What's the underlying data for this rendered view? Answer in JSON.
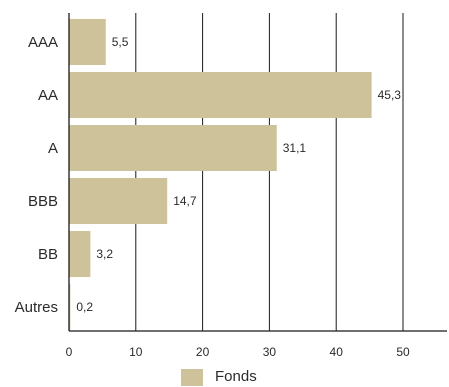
{
  "chart_data": {
    "type": "bar",
    "orientation": "horizontal",
    "categories": [
      "AAA",
      "AA",
      "A",
      "BBB",
      "BB",
      "Autres"
    ],
    "series": [
      {
        "name": "Fonds",
        "values": [
          5.5,
          45.3,
          31.1,
          14.7,
          3.2,
          0.2
        ],
        "color": "#cdc29a"
      }
    ],
    "value_labels": [
      "5,5",
      "45,3",
      "31,1",
      "14,7",
      "3,2",
      "0,2"
    ],
    "xlim": [
      0,
      57
    ],
    "x_ticks": [
      0,
      10,
      20,
      30,
      40,
      50
    ],
    "x_tick_labels": [
      "0",
      "10",
      "20",
      "30",
      "40",
      "50"
    ],
    "grid": "vertical",
    "legend_position": "bottom"
  },
  "legend": {
    "label": "Fonds"
  }
}
